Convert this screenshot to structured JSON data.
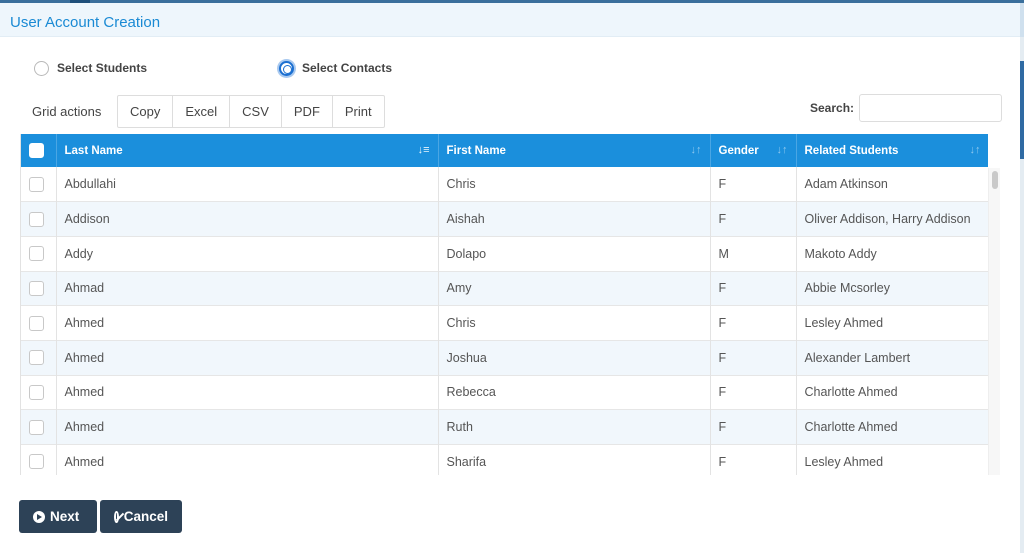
{
  "window": {
    "title": "User Account Creation"
  },
  "selection": {
    "options": [
      {
        "label": "Select Students",
        "checked": false
      },
      {
        "label": "Select Contacts",
        "checked": true
      }
    ]
  },
  "toolbar": {
    "grid_actions_label": "Grid actions",
    "buttons": [
      "Copy",
      "Excel",
      "CSV",
      "PDF",
      "Print"
    ],
    "search_label": "Search:",
    "search_value": ""
  },
  "table": {
    "columns": [
      "Last Name",
      "First Name",
      "Gender",
      "Related Students"
    ],
    "sorted_column": "Last Name",
    "rows": [
      [
        "Abdullahi",
        "Chris",
        "F",
        "Adam Atkinson"
      ],
      [
        "Addison",
        "Aishah",
        "F",
        "Oliver Addison, Harry Addison"
      ],
      [
        "Addy",
        "Dolapo",
        "M",
        "Makoto Addy"
      ],
      [
        "Ahmad",
        "Amy",
        "F",
        "Abbie Mcsorley"
      ],
      [
        "Ahmed",
        "Chris",
        "F",
        "Lesley Ahmed"
      ],
      [
        "Ahmed",
        "Joshua",
        "F",
        "Alexander Lambert"
      ],
      [
        "Ahmed",
        "Rebecca",
        "F",
        "Charlotte Ahmed"
      ],
      [
        "Ahmed",
        "Ruth",
        "F",
        "Charlotte Ahmed"
      ],
      [
        "Ahmed",
        "Sharifa",
        "F",
        "Lesley Ahmed"
      ]
    ]
  },
  "footer": {
    "next_label": "Next",
    "cancel_label": "Cancel"
  },
  "colors": {
    "header": "#1b8fdc",
    "title": "#1a8ad4",
    "footer_button": "#2d4257",
    "radio_selected": "#1b6fd1"
  }
}
